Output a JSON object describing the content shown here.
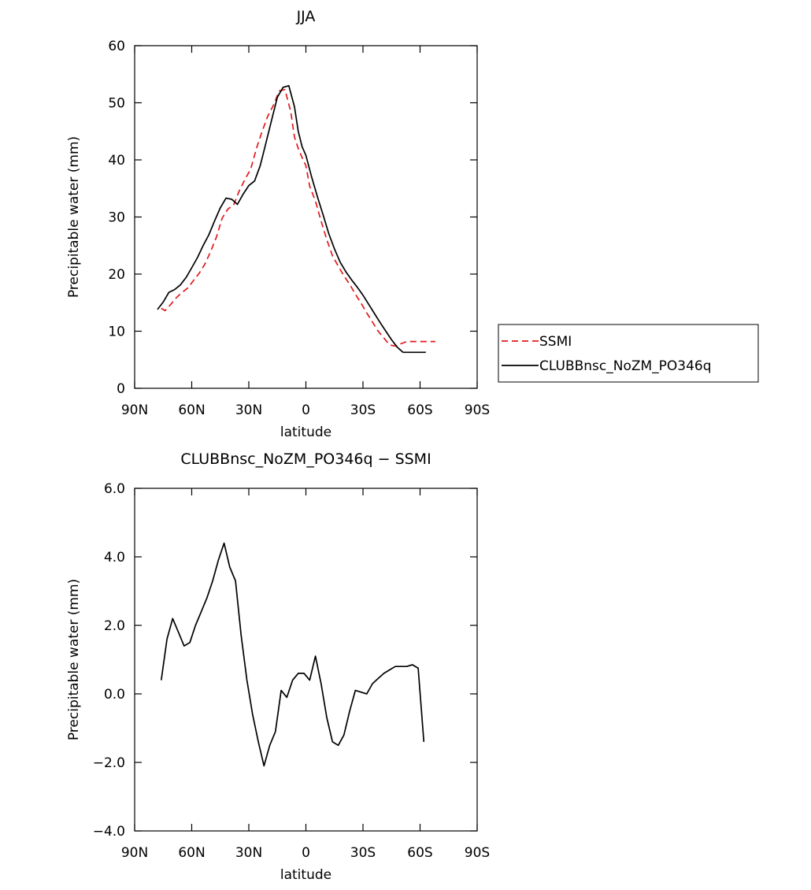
{
  "chart_data": [
    {
      "type": "line",
      "title": "JJA",
      "xlabel": "latitude",
      "ylabel": "Precipitable water (mm)",
      "xlim": [
        90,
        -90
      ],
      "ylim": [
        0,
        60
      ],
      "xticks": [
        {
          "value": 90,
          "label": "90N"
        },
        {
          "value": 60,
          "label": "60N"
        },
        {
          "value": 30,
          "label": "30N"
        },
        {
          "value": 0,
          "label": "0"
        },
        {
          "value": -30,
          "label": "30S"
        },
        {
          "value": -60,
          "label": "60S"
        },
        {
          "value": -90,
          "label": "90S"
        }
      ],
      "yticks": [
        {
          "value": 0,
          "label": "0"
        },
        {
          "value": 10,
          "label": "10"
        },
        {
          "value": 20,
          "label": "20"
        },
        {
          "value": 30,
          "label": "30"
        },
        {
          "value": 40,
          "label": "40"
        },
        {
          "value": 50,
          "label": "50"
        },
        {
          "value": 60,
          "label": "60"
        }
      ],
      "legend": "right",
      "series": [
        {
          "name": "SSMI",
          "color": "#e31a1c",
          "dash": "dashed",
          "x": [
            76,
            74,
            71,
            68,
            65,
            62,
            59,
            56,
            53,
            50,
            47,
            44,
            41,
            38,
            35,
            32,
            29,
            26,
            23,
            20,
            17,
            14,
            11,
            8,
            6,
            4,
            2,
            0,
            -2,
            -5,
            -8,
            -11,
            -14,
            -17,
            -20,
            -23,
            -26,
            -29,
            -32,
            -35,
            -38,
            -41,
            -44,
            -47,
            -50,
            -53,
            -56,
            -59,
            -62,
            -65,
            -68
          ],
          "y": [
            14.0,
            13.6,
            14.7,
            15.9,
            16.8,
            17.6,
            18.9,
            20.2,
            21.8,
            24.0,
            26.5,
            29.8,
            31.4,
            32.1,
            34.6,
            36.6,
            38.4,
            42.0,
            45.0,
            47.7,
            49.6,
            52.1,
            52.3,
            48.5,
            44.0,
            42.0,
            40.4,
            39.0,
            35.4,
            32.8,
            29.3,
            26.0,
            23.2,
            21.4,
            19.7,
            18.2,
            16.5,
            14.9,
            13.2,
            11.6,
            10.0,
            8.8,
            7.6,
            7.4,
            7.8,
            8.2,
            8.2,
            8.2,
            8.2,
            8.2,
            8.2
          ]
        },
        {
          "name": "CLUBBnsc_NoZM_PO346q",
          "color": "#000000",
          "dash": "solid",
          "x": [
            78,
            75,
            72,
            69,
            66,
            63,
            60,
            57,
            54,
            51,
            48,
            45,
            42,
            39,
            36,
            33,
            30,
            27,
            24,
            21,
            18,
            15,
            12,
            9,
            6,
            4,
            2,
            0,
            -3,
            -6,
            -9,
            -12,
            -15,
            -18,
            -21,
            -24,
            -27,
            -30,
            -33,
            -36,
            -39,
            -42,
            -45,
            -48,
            -51,
            -54,
            -57,
            -60,
            -63
          ],
          "y": [
            13.8,
            15.1,
            16.8,
            17.3,
            18.1,
            19.4,
            21.1,
            22.9,
            25.0,
            26.9,
            29.3,
            31.6,
            33.3,
            33.1,
            32.2,
            34.0,
            35.5,
            36.3,
            39.0,
            43.0,
            47.0,
            51.0,
            52.7,
            53.0,
            49.3,
            45.0,
            42.3,
            40.8,
            37.0,
            33.6,
            30.4,
            27.1,
            24.4,
            22.1,
            20.4,
            19.0,
            17.7,
            16.3,
            14.7,
            13.1,
            11.5,
            10.0,
            8.5,
            7.2,
            6.3,
            6.3,
            6.3,
            6.3,
            6.3
          ]
        }
      ]
    },
    {
      "type": "line",
      "title": "CLUBBnsc_NoZM_PO346q − SSMI",
      "xlabel": "latitude",
      "ylabel": "Precipitable water (mm)",
      "xlim": [
        90,
        -90
      ],
      "ylim": [
        -4.0,
        6.0
      ],
      "xticks": [
        {
          "value": 90,
          "label": "90N"
        },
        {
          "value": 60,
          "label": "60N"
        },
        {
          "value": 30,
          "label": "30N"
        },
        {
          "value": 0,
          "label": "0"
        },
        {
          "value": -30,
          "label": "30S"
        },
        {
          "value": -60,
          "label": "60S"
        },
        {
          "value": -90,
          "label": "90S"
        }
      ],
      "yticks": [
        {
          "value": -4.0,
          "label": "−4.0"
        },
        {
          "value": -2.0,
          "label": "−2.0"
        },
        {
          "value": 0.0,
          "label": "0.0"
        },
        {
          "value": 2.0,
          "label": "2.0"
        },
        {
          "value": 4.0,
          "label": "4.0"
        },
        {
          "value": 6.0,
          "label": "6.0"
        }
      ],
      "series": [
        {
          "color": "#000000",
          "dash": "solid",
          "x": [
            76,
            73,
            70,
            67,
            64,
            61,
            58,
            55,
            52,
            49,
            46,
            43,
            40,
            37,
            34,
            31,
            28,
            25,
            22,
            19,
            16,
            13,
            10,
            7,
            4,
            1,
            -2,
            -5,
            -8,
            -11,
            -14,
            -17,
            -20,
            -23,
            -26,
            -29,
            -32,
            -35,
            -38,
            -41,
            -44,
            -47,
            -50,
            -53,
            -56,
            -59,
            -62
          ],
          "y": [
            0.4,
            1.6,
            2.2,
            1.8,
            1.4,
            1.5,
            2.0,
            2.4,
            2.8,
            3.3,
            3.9,
            4.4,
            3.7,
            3.3,
            1.7,
            0.4,
            -0.6,
            -1.4,
            -2.1,
            -1.5,
            -1.1,
            0.1,
            -0.1,
            0.4,
            0.6,
            0.6,
            0.4,
            1.1,
            0.3,
            -0.7,
            -1.4,
            -1.5,
            -1.2,
            -0.5,
            0.1,
            0.05,
            0.0,
            0.3,
            0.45,
            0.6,
            0.7,
            0.8,
            0.8,
            0.8,
            0.85,
            0.75,
            -1.4
          ]
        }
      ]
    }
  ]
}
